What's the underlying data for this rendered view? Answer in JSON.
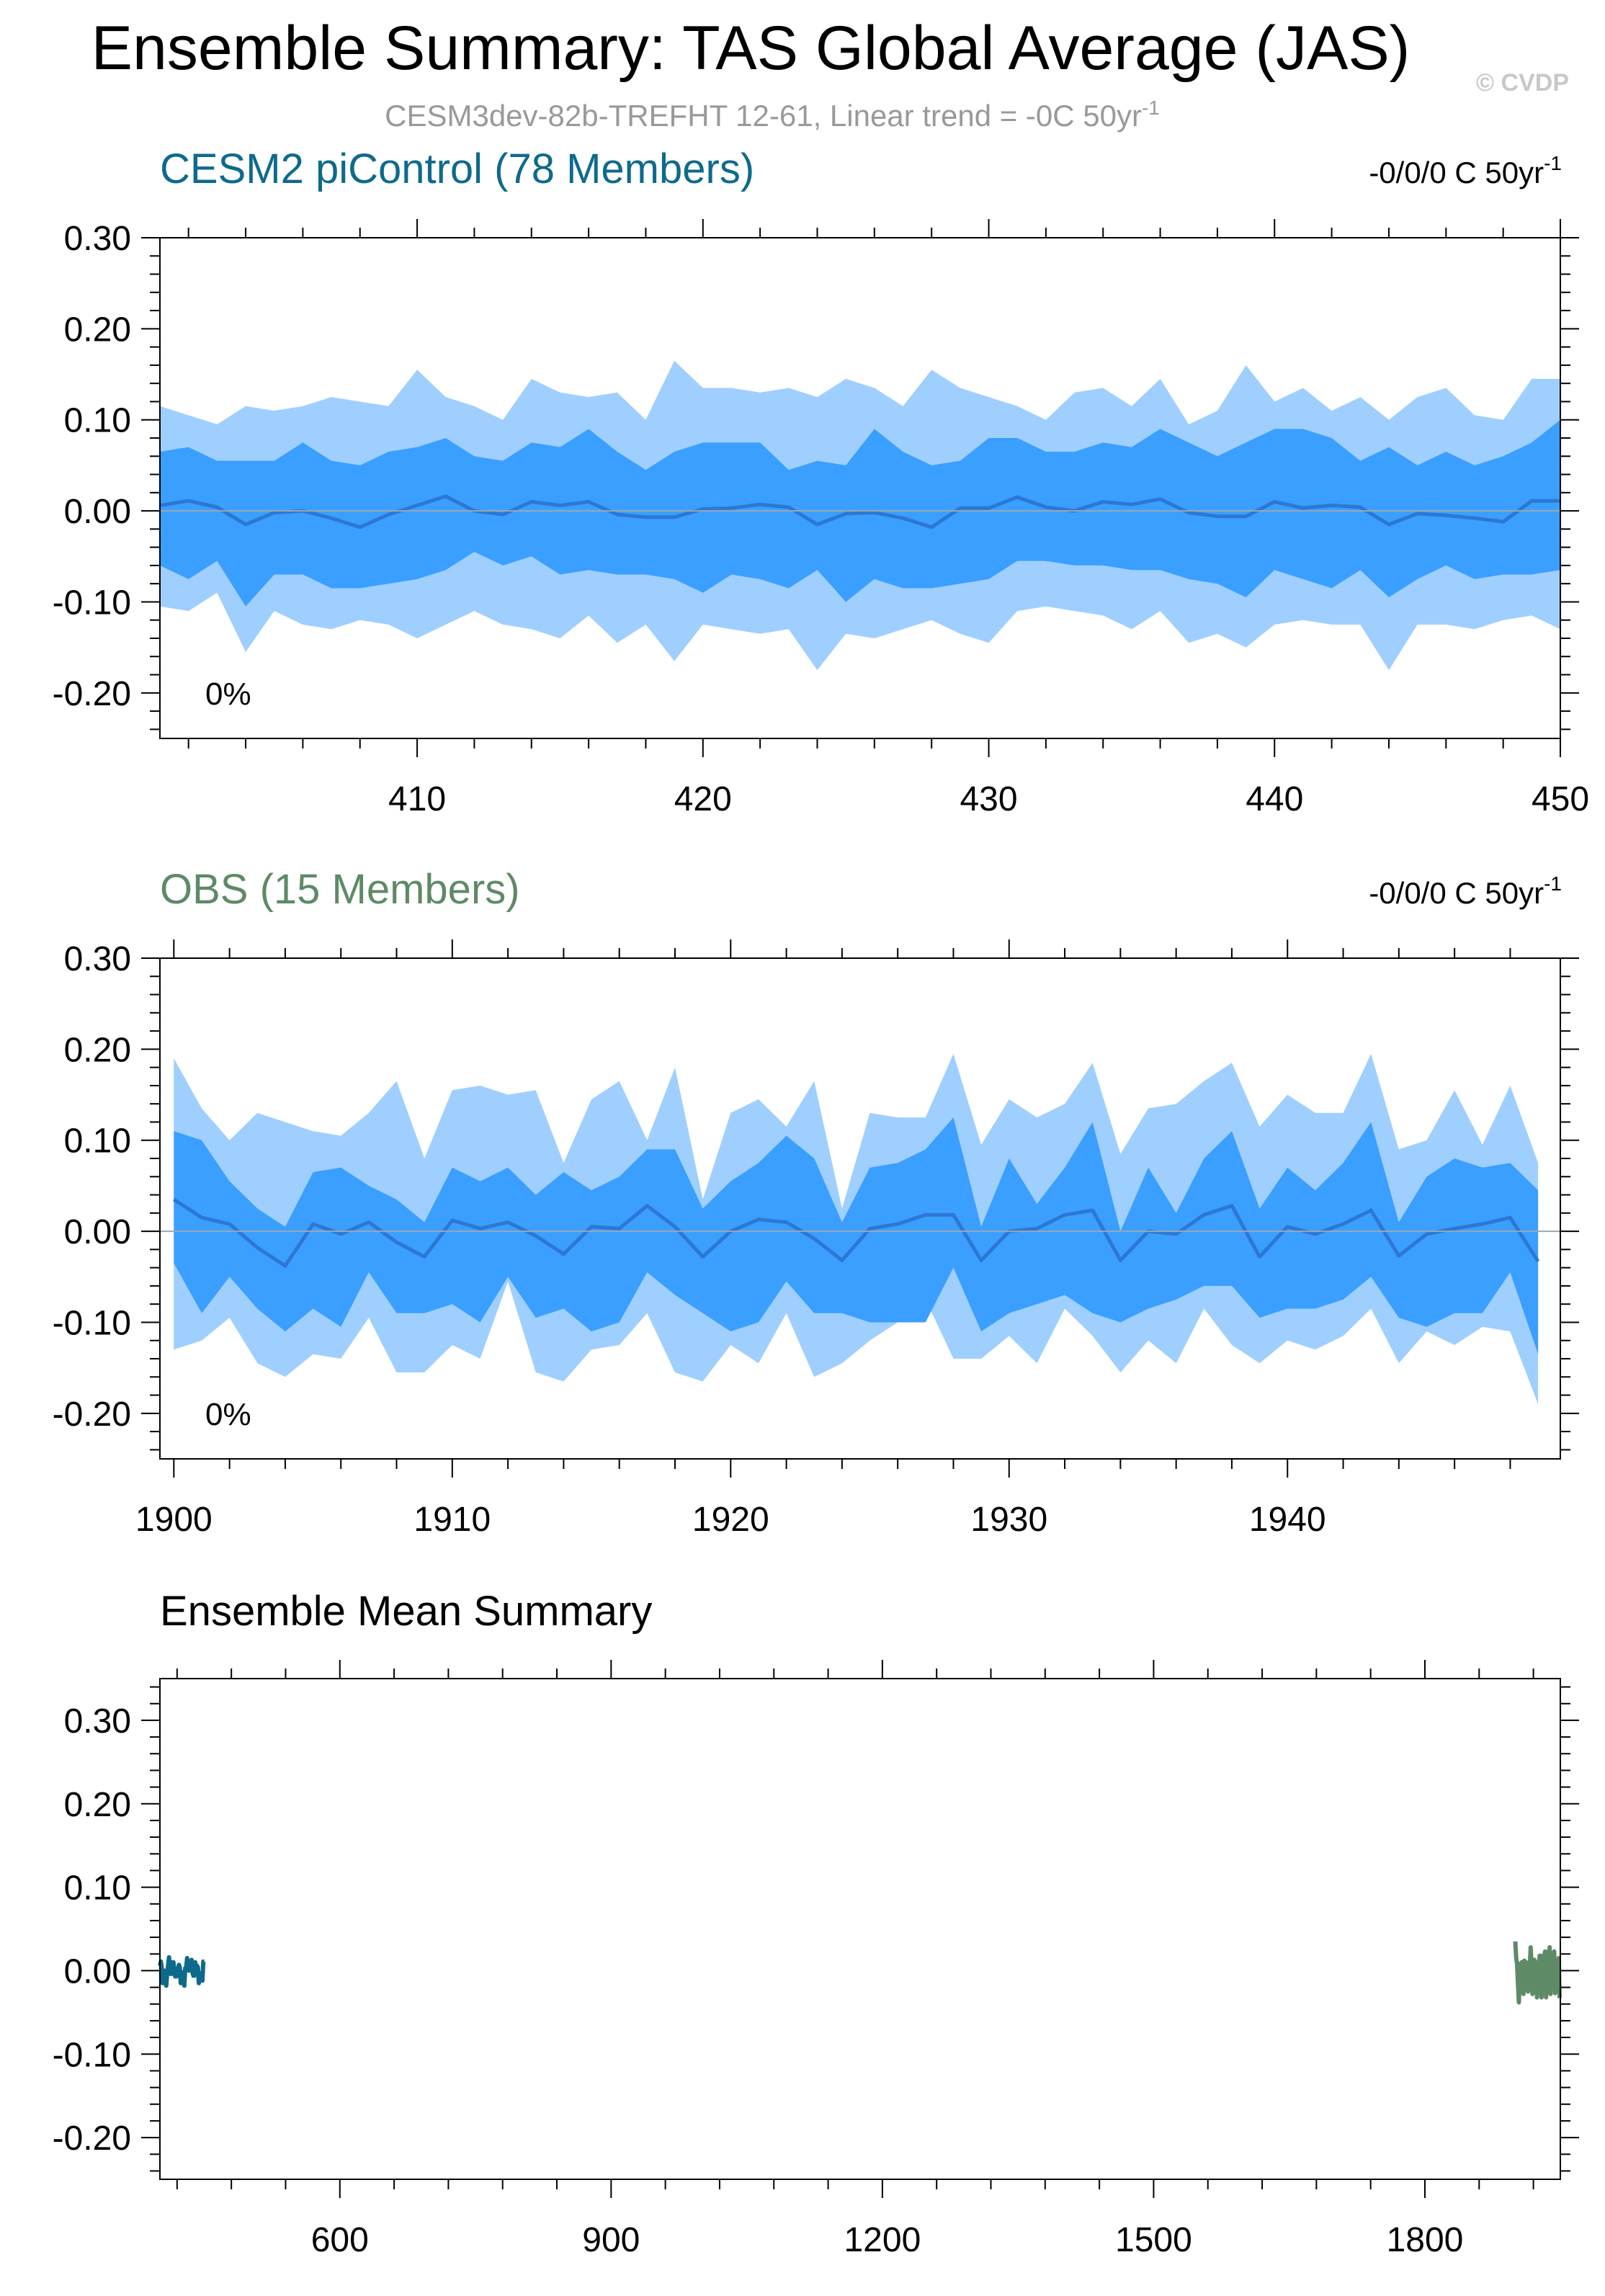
{
  "figure": {
    "title": "Ensemble Summary: TAS Global Average (JAS)",
    "subtitle": "CESM3dev-82b-TREFHT 12-61, Linear trend = -0C 50yr",
    "subtitle_superscript": "-1",
    "watermark": "© CVDP",
    "colors": {
      "model": "#0e6a8c",
      "obs": "#5e8a65",
      "band_outer": "#9fcfff",
      "band_inner": "#3a9fff",
      "mean_line": "#2d77d4",
      "zero_line": "#9aa7b6"
    }
  },
  "chart_data": [
    {
      "type": "area",
      "panel": "model",
      "title": "CESM2 piControl (78 Members)",
      "trend_label": "-0/0/0 C 50yr",
      "trend_superscript": "-1",
      "corner_label": "0%",
      "xlim": [
        401,
        450
      ],
      "ylim": [
        -0.25,
        0.3
      ],
      "xticks": [
        410,
        420,
        430,
        440,
        450
      ],
      "yticks": [
        0.3,
        0.2,
        0.1,
        0.0,
        -0.1,
        -0.2
      ],
      "ytick_labels": [
        "0.30",
        "0.20",
        "0.10",
        "0.00",
        "-0.10",
        "-0.20"
      ],
      "x_start": 401,
      "mean": [
        0.006,
        0.011,
        0.004,
        -0.015,
        -0.002,
        0.0,
        -0.008,
        -0.018,
        -0.004,
        0.006,
        0.016,
        0.0,
        -0.004,
        0.01,
        0.006,
        0.01,
        -0.004,
        -0.007,
        -0.007,
        0.002,
        0.003,
        0.007,
        0.004,
        -0.015,
        -0.003,
        -0.002,
        -0.008,
        -0.018,
        0.003,
        0.003,
        0.015,
        0.004,
        0.0,
        0.01,
        0.007,
        0.013,
        -0.002,
        -0.006,
        -0.006,
        0.01,
        0.003,
        0.006,
        0.004,
        -0.015,
        -0.003,
        -0.005,
        -0.008,
        -0.012,
        0.011,
        0.011
      ],
      "p25": [
        -0.06,
        -0.075,
        -0.055,
        -0.105,
        -0.07,
        -0.07,
        -0.085,
        -0.085,
        -0.08,
        -0.075,
        -0.065,
        -0.045,
        -0.06,
        -0.05,
        -0.07,
        -0.065,
        -0.07,
        -0.07,
        -0.075,
        -0.09,
        -0.07,
        -0.075,
        -0.085,
        -0.065,
        -0.1,
        -0.075,
        -0.085,
        -0.085,
        -0.08,
        -0.075,
        -0.055,
        -0.055,
        -0.06,
        -0.06,
        -0.065,
        -0.065,
        -0.075,
        -0.08,
        -0.095,
        -0.065,
        -0.075,
        -0.085,
        -0.065,
        -0.095,
        -0.075,
        -0.06,
        -0.075,
        -0.07,
        -0.07,
        -0.065
      ],
      "p75": [
        0.065,
        0.07,
        0.055,
        0.055,
        0.055,
        0.075,
        0.055,
        0.05,
        0.065,
        0.07,
        0.08,
        0.06,
        0.055,
        0.075,
        0.07,
        0.09,
        0.065,
        0.045,
        0.065,
        0.075,
        0.075,
        0.075,
        0.045,
        0.055,
        0.05,
        0.09,
        0.065,
        0.05,
        0.055,
        0.08,
        0.08,
        0.065,
        0.065,
        0.075,
        0.07,
        0.09,
        0.075,
        0.06,
        0.075,
        0.09,
        0.09,
        0.08,
        0.055,
        0.07,
        0.05,
        0.065,
        0.05,
        0.06,
        0.075,
        0.1
      ],
      "p10": [
        -0.105,
        -0.11,
        -0.09,
        -0.155,
        -0.11,
        -0.125,
        -0.13,
        -0.12,
        -0.125,
        -0.14,
        -0.125,
        -0.11,
        -0.125,
        -0.13,
        -0.14,
        -0.115,
        -0.145,
        -0.125,
        -0.165,
        -0.125,
        -0.13,
        -0.135,
        -0.13,
        -0.175,
        -0.135,
        -0.14,
        -0.13,
        -0.12,
        -0.135,
        -0.145,
        -0.11,
        -0.105,
        -0.11,
        -0.115,
        -0.13,
        -0.11,
        -0.145,
        -0.135,
        -0.15,
        -0.125,
        -0.12,
        -0.125,
        -0.125,
        -0.175,
        -0.125,
        -0.125,
        -0.13,
        -0.12,
        -0.115,
        -0.13
      ],
      "p90": [
        0.115,
        0.105,
        0.095,
        0.115,
        0.11,
        0.115,
        0.125,
        0.12,
        0.115,
        0.155,
        0.125,
        0.115,
        0.1,
        0.145,
        0.13,
        0.125,
        0.13,
        0.1,
        0.165,
        0.135,
        0.135,
        0.13,
        0.135,
        0.125,
        0.145,
        0.135,
        0.115,
        0.155,
        0.135,
        0.125,
        0.115,
        0.1,
        0.13,
        0.135,
        0.115,
        0.145,
        0.095,
        0.11,
        0.16,
        0.12,
        0.135,
        0.11,
        0.125,
        0.1,
        0.125,
        0.135,
        0.105,
        0.1,
        0.145,
        0.145
      ]
    },
    {
      "type": "area",
      "panel": "obs",
      "title": "OBS (15 Members)",
      "trend_label": "-0/0/0 C 50yr",
      "trend_superscript": "-1",
      "corner_label": "0%",
      "xlim": [
        1899.5,
        1949.8
      ],
      "ylim": [
        -0.25,
        0.3
      ],
      "xticks": [
        1900,
        1910,
        1920,
        1930,
        1940
      ],
      "yticks": [
        0.3,
        0.2,
        0.1,
        0.0,
        -0.1,
        -0.2
      ],
      "ytick_labels": [
        "0.30",
        "0.20",
        "0.10",
        "0.00",
        "-0.10",
        "-0.20"
      ],
      "x_start": 1900,
      "mean": [
        0.035,
        0.015,
        0.008,
        -0.018,
        -0.038,
        0.008,
        -0.003,
        0.01,
        -0.012,
        -0.028,
        0.012,
        0.003,
        0.01,
        -0.005,
        -0.025,
        0.005,
        0.003,
        0.028,
        0.005,
        -0.028,
        0.0,
        0.013,
        0.01,
        -0.008,
        -0.032,
        0.003,
        0.008,
        0.018,
        0.018,
        -0.032,
        0.0,
        0.003,
        0.018,
        0.023,
        -0.032,
        0.0,
        -0.003,
        0.018,
        0.028,
        -0.028,
        0.005,
        -0.003,
        0.008,
        0.023,
        -0.027,
        -0.003,
        0.003,
        0.008,
        0.015,
        -0.033
      ],
      "p25": [
        -0.035,
        -0.09,
        -0.05,
        -0.085,
        -0.11,
        -0.085,
        -0.105,
        -0.045,
        -0.09,
        -0.09,
        -0.08,
        -0.1,
        -0.05,
        -0.095,
        -0.085,
        -0.11,
        -0.1,
        -0.045,
        -0.07,
        -0.09,
        -0.11,
        -0.1,
        -0.055,
        -0.09,
        -0.09,
        -0.1,
        -0.1,
        -0.1,
        -0.04,
        -0.11,
        -0.09,
        -0.08,
        -0.07,
        -0.09,
        -0.1,
        -0.085,
        -0.075,
        -0.06,
        -0.06,
        -0.095,
        -0.085,
        -0.085,
        -0.075,
        -0.05,
        -0.095,
        -0.105,
        -0.09,
        -0.09,
        -0.045,
        -0.135
      ],
      "p75": [
        0.11,
        0.1,
        0.055,
        0.025,
        0.005,
        0.065,
        0.07,
        0.05,
        0.035,
        0.01,
        0.07,
        0.055,
        0.07,
        0.04,
        0.065,
        0.045,
        0.06,
        0.09,
        0.09,
        0.025,
        0.055,
        0.075,
        0.105,
        0.08,
        0.01,
        0.07,
        0.075,
        0.09,
        0.125,
        0.005,
        0.08,
        0.03,
        0.07,
        0.12,
        0.0,
        0.07,
        0.02,
        0.08,
        0.11,
        0.025,
        0.07,
        0.045,
        0.075,
        0.12,
        0.01,
        0.06,
        0.08,
        0.07,
        0.075,
        0.045
      ],
      "p10": [
        -0.13,
        -0.12,
        -0.095,
        -0.145,
        -0.16,
        -0.135,
        -0.14,
        -0.095,
        -0.155,
        -0.155,
        -0.125,
        -0.14,
        -0.055,
        -0.155,
        -0.165,
        -0.13,
        -0.125,
        -0.09,
        -0.155,
        -0.165,
        -0.125,
        -0.145,
        -0.09,
        -0.16,
        -0.145,
        -0.12,
        -0.1,
        -0.075,
        -0.14,
        -0.14,
        -0.115,
        -0.145,
        -0.085,
        -0.115,
        -0.155,
        -0.12,
        -0.145,
        -0.085,
        -0.125,
        -0.145,
        -0.12,
        -0.13,
        -0.115,
        -0.085,
        -0.145,
        -0.11,
        -0.125,
        -0.105,
        -0.11,
        -0.19
      ],
      "p90": [
        0.19,
        0.135,
        0.1,
        0.13,
        0.12,
        0.11,
        0.105,
        0.13,
        0.165,
        0.08,
        0.155,
        0.16,
        0.15,
        0.155,
        0.075,
        0.145,
        0.165,
        0.1,
        0.18,
        0.035,
        0.13,
        0.145,
        0.115,
        0.165,
        0.025,
        0.13,
        0.125,
        0.125,
        0.195,
        0.095,
        0.145,
        0.125,
        0.14,
        0.185,
        0.085,
        0.135,
        0.14,
        0.165,
        0.185,
        0.115,
        0.15,
        0.13,
        0.13,
        0.195,
        0.09,
        0.1,
        0.155,
        0.095,
        0.16,
        0.075
      ]
    },
    {
      "type": "line",
      "panel": "summary",
      "title": "Ensemble Mean Summary",
      "xlim": [
        401,
        1949.8
      ],
      "ylim": [
        -0.25,
        0.35
      ],
      "xticks": [
        600,
        900,
        1200,
        1500,
        1800
      ],
      "yticks": [
        0.3,
        0.2,
        0.1,
        0.0,
        -0.1,
        -0.2
      ],
      "ytick_labels": [
        "0.30",
        "0.20",
        "0.10",
        "0.00",
        "-0.10",
        "-0.20"
      ],
      "series": [
        {
          "color_key": "model",
          "x_start": 401,
          "source": "model.mean"
        },
        {
          "color_key": "obs",
          "x_start": 1900,
          "source": "obs.mean"
        }
      ]
    }
  ]
}
